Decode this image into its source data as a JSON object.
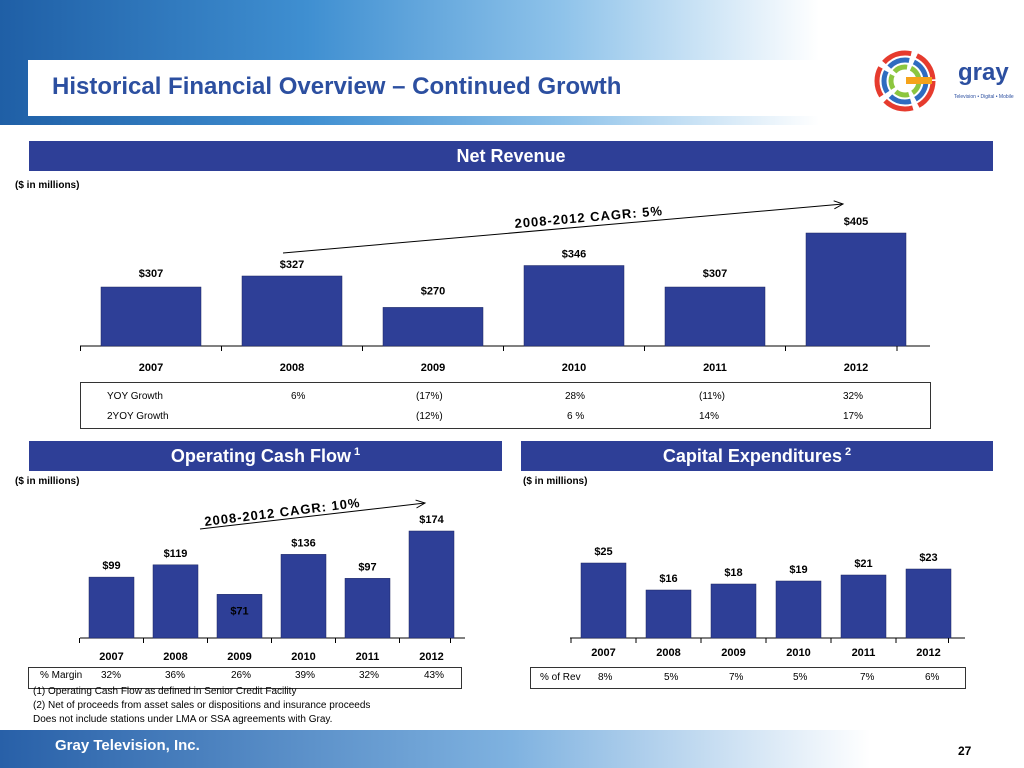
{
  "header": {
    "title": "Historical Financial Overview – Continued Growth"
  },
  "logo": {
    "brand": "gray",
    "tagline": "Television • Digital • Mobile"
  },
  "net_revenue": {
    "heading": "Net Revenue",
    "units": "($ in millions)",
    "growth_rows": [
      {
        "label": "YOY Growth",
        "values": [
          "",
          "6%",
          "(17%)",
          "28%",
          "(11%)",
          "32%"
        ]
      },
      {
        "label": "2YOY Growth",
        "values": [
          "",
          "",
          "(12%)",
          "6 %",
          "14%",
          "17%"
        ]
      }
    ]
  },
  "operating_cash_flow": {
    "heading": "Operating Cash Flow",
    "note_ref": "1",
    "units": "($ in millions)",
    "margin_label": "% Margin",
    "margins": [
      "32%",
      "36%",
      "26%",
      "39%",
      "32%",
      "43%"
    ]
  },
  "capex": {
    "heading": "Capital Expenditures",
    "note_ref": "2",
    "units": "($ in millions)",
    "rev_label": "% of Rev",
    "rev_pcts": [
      "8%",
      "5%",
      "7%",
      "5%",
      "7%",
      "6%"
    ]
  },
  "chart_data": [
    {
      "id": "net_revenue",
      "type": "bar",
      "title": "Net Revenue",
      "ylabel": "($ in millions)",
      "categories": [
        "2007",
        "2008",
        "2009",
        "2010",
        "2011",
        "2012"
      ],
      "values": [
        307,
        327,
        270,
        346,
        307,
        405
      ],
      "labels": [
        "$307",
        "$327",
        "$270",
        "$346",
        "$307",
        "$405"
      ],
      "annotation": "2008-2012 CAGR:  5%",
      "ylim": [
        200,
        420
      ]
    },
    {
      "id": "operating_cash_flow",
      "type": "bar",
      "title": "Operating Cash Flow",
      "ylabel": "($ in millions)",
      "categories": [
        "2007",
        "2008",
        "2009",
        "2010",
        "2011",
        "2012"
      ],
      "values": [
        99,
        119,
        71,
        136,
        97,
        174
      ],
      "labels": [
        "$99",
        "$119",
        "$71",
        "$136",
        "$97",
        "$174"
      ],
      "annotation": "2008-2012 CAGR:  10%",
      "ylim": [
        0,
        180
      ]
    },
    {
      "id": "capex",
      "type": "bar",
      "title": "Capital Expenditures",
      "ylabel": "($ in millions)",
      "categories": [
        "2007",
        "2008",
        "2009",
        "2010",
        "2011",
        "2012"
      ],
      "values": [
        25,
        16,
        18,
        19,
        21,
        23
      ],
      "labels": [
        "$25",
        "$16",
        "$18",
        "$19",
        "$21",
        "$23"
      ],
      "ylim": [
        0,
        26
      ]
    }
  ],
  "footnotes": [
    "(1)   Operating Cash Flow as defined in Senior Credit Facility",
    "(2)   Net of proceeds from asset sales or dispositions and insurance proceeds",
    "Does not include stations under LMA or SSA agreements with Gray."
  ],
  "footer": {
    "company": "Gray Television, Inc.",
    "page": "27"
  },
  "colors": {
    "bar": "#2e3f97",
    "header_band": "#2e3f97",
    "title": "#2c4fa0"
  }
}
